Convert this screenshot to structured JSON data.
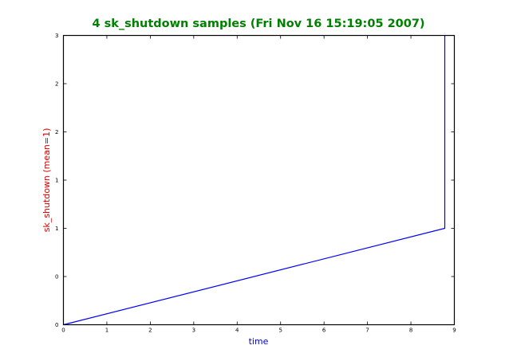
{
  "chart_data": {
    "type": "line",
    "title": "4 sk_shutdown samples (Fri Nov 16 15:19:05 2007)",
    "xlabel": "time",
    "ylabel": "sk_shutdown (mean=1)",
    "xlim": [
      0,
      9
    ],
    "ylim": [
      0,
      3
    ],
    "x_ticks": [
      "0",
      "1",
      "2",
      "3",
      "4",
      "5",
      "6",
      "7",
      "8",
      "9"
    ],
    "y_ticks": [
      "0",
      "0",
      "1",
      "1",
      "2",
      "2",
      "3"
    ],
    "grid": false,
    "colors": {
      "title": "#008000",
      "xlabel": "#0000cc",
      "ylabel": "#dd0000",
      "line": "#0000ff"
    },
    "series": [
      {
        "x": [
          0,
          8.78,
          8.78
        ],
        "y": [
          0,
          1,
          3
        ]
      }
    ]
  }
}
